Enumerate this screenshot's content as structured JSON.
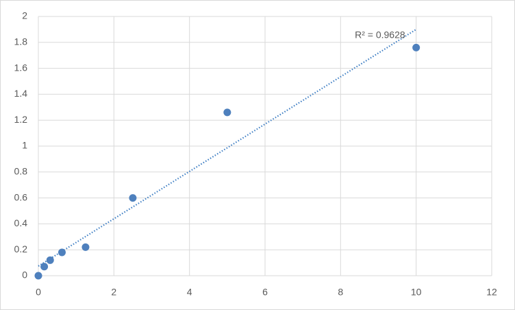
{
  "chart_data": {
    "type": "scatter",
    "series": [
      {
        "color": "#4e80bd",
        "x": [
          0,
          0.156,
          0.3125,
          0.625,
          1.25,
          2.5,
          5,
          10
        ],
        "values": [
          0,
          0.07,
          0.12,
          0.18,
          0.22,
          0.6,
          1.26,
          1.76
        ]
      }
    ],
    "trendline": {
      "color": "#3f7fc4",
      "x": [
        0,
        10
      ],
      "values": [
        0.074,
        1.9
      ],
      "label": "R² = 0.9628"
    },
    "xlim": [
      0,
      12
    ],
    "xticks": [
      0,
      2,
      4,
      6,
      8,
      10,
      12
    ],
    "ylim": [
      0,
      2
    ],
    "yticks": [
      0,
      {
        "value": 0.2,
        "label": "0.2"
      },
      {
        "value": 0.4,
        "label": "0.4"
      },
      {
        "value": 0.6,
        "label": "0.6"
      },
      {
        "value": 0.8,
        "label": "0.8"
      },
      1,
      {
        "value": 1.2,
        "label": "1.2"
      },
      {
        "value": 1.4,
        "label": "1.4"
      },
      {
        "value": 1.6,
        "label": "1.6"
      },
      {
        "value": 1.8,
        "label": "1.8"
      },
      2
    ],
    "grid": true
  }
}
